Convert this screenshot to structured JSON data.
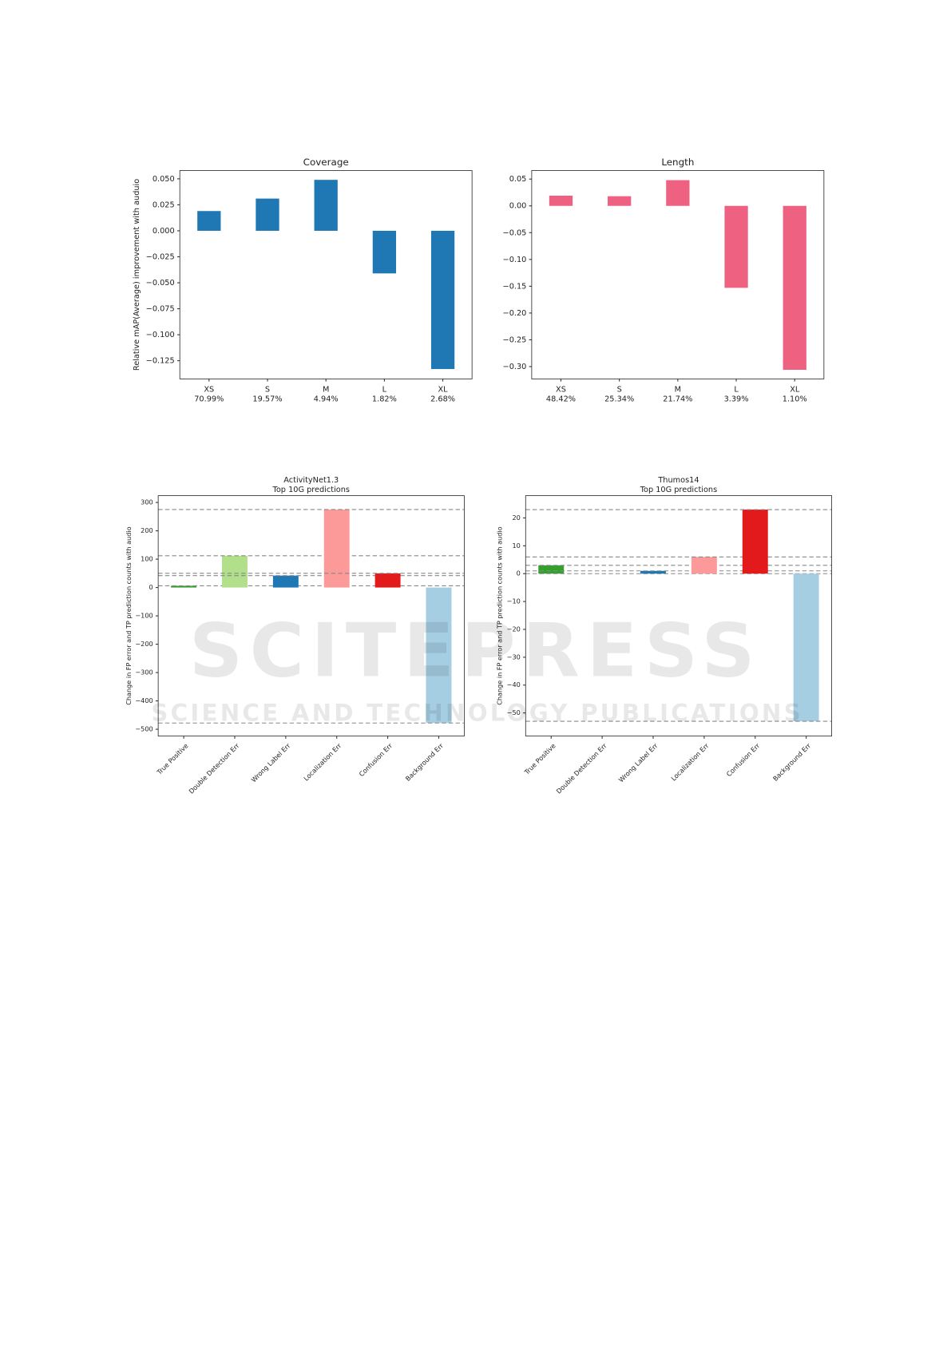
{
  "chart_data": [
    {
      "type": "bar",
      "title": "Coverage",
      "ylabel": "Relative mAP(Average) improvement with auduio",
      "categories": [
        "XS",
        "S",
        "M",
        "L",
        "XL"
      ],
      "category_shares": [
        "70.99%",
        "19.57%",
        "4.94%",
        "1.82%",
        "2.68%"
      ],
      "values": [
        0.019,
        0.031,
        0.049,
        -0.041,
        -0.133
      ],
      "color": "#1f77b4",
      "ylim": [
        -0.1425,
        0.058
      ],
      "yticks": [
        {
          "value": 0.05,
          "label": "0.050"
        },
        {
          "value": 0.025,
          "label": "0.025"
        },
        {
          "value": 0,
          "label": "0.000"
        },
        {
          "value": -0.025,
          "label": "−0.025"
        },
        {
          "value": -0.05,
          "label": "−0.050"
        },
        {
          "value": -0.075,
          "label": "−0.075"
        },
        {
          "value": -0.1,
          "label": "−0.100"
        },
        {
          "value": -0.125,
          "label": "−0.125"
        }
      ]
    },
    {
      "type": "bar",
      "title": "Length",
      "categories": [
        "XS",
        "S",
        "M",
        "L",
        "XL"
      ],
      "category_shares": [
        "48.42%",
        "25.34%",
        "21.74%",
        "3.39%",
        "1.10%"
      ],
      "values": [
        0.019,
        0.018,
        0.048,
        -0.153,
        -0.306
      ],
      "color": "#ee6180",
      "ylim": [
        -0.323,
        0.066
      ],
      "yticks": [
        {
          "value": 0.05,
          "label": "0.05"
        },
        {
          "value": 0,
          "label": "0.00"
        },
        {
          "value": -0.05,
          "label": "−0.05"
        },
        {
          "value": -0.1,
          "label": "−0.10"
        },
        {
          "value": -0.15,
          "label": "−0.15"
        },
        {
          "value": -0.2,
          "label": "−0.20"
        },
        {
          "value": -0.25,
          "label": "−0.25"
        },
        {
          "value": -0.3,
          "label": "−0.30"
        }
      ]
    },
    {
      "type": "bar",
      "title": "ActivityNet1.3",
      "subtitle": "Top 10G predictions",
      "ylabel": "Change in FP error and TP prediction counts with audio",
      "categories": [
        "True Positive",
        "Double Detection Err",
        "Wrong Label Err",
        "Localization Err",
        "Confusion Err",
        "Background Err"
      ],
      "values": [
        6,
        112,
        42,
        275,
        50,
        -478
      ],
      "colors": [
        "#33a02c",
        "#b2df8a",
        "#1f78b4",
        "#fb9a99",
        "#e31a1c",
        "#a6cee3"
      ],
      "value_lines": true,
      "ylim": [
        -524,
        324
      ],
      "yticks": [
        300,
        200,
        100,
        0,
        {
          "value": -100,
          "label": "−100"
        },
        {
          "value": -200,
          "label": "−200"
        },
        {
          "value": -300,
          "label": "−300"
        },
        {
          "value": -400,
          "label": "−400"
        },
        {
          "value": -500,
          "label": "−500"
        }
      ]
    },
    {
      "type": "bar",
      "title": "Thumos14",
      "subtitle": "Top 10G predictions",
      "ylabel": "Change in FP error and TP prediction counts with audio",
      "categories": [
        "True Positive",
        "Double Detection Err",
        "Wrong Label Err",
        "Localization Err",
        "Confusion Err",
        "Background Err"
      ],
      "values": [
        3,
        0,
        1,
        6,
        23,
        -53
      ],
      "colors": [
        "#33a02c",
        "#b2df8a",
        "#1f78b4",
        "#fb9a99",
        "#e31a1c",
        "#a6cee3"
      ],
      "value_lines": true,
      "ylim": [
        -58.3,
        28
      ],
      "yticks": [
        20,
        10,
        0,
        {
          "value": -10,
          "label": "−10"
        },
        {
          "value": -20,
          "label": "−20"
        },
        {
          "value": -30,
          "label": "−30"
        },
        {
          "value": -40,
          "label": "−40"
        },
        {
          "value": -50,
          "label": "−50"
        }
      ]
    }
  ],
  "watermark": "SCITEPRESS",
  "watermark_subtitle": "SCIENCE AND TECHNOLOGY PUBLICATIONS"
}
